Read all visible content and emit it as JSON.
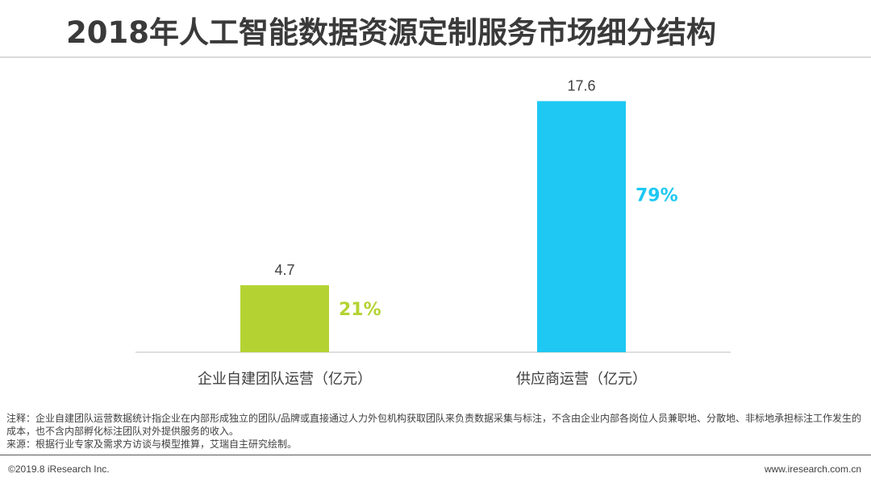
{
  "title": "2018年人工智能数据资源定制服务市场细分结构",
  "chart_data": {
    "type": "bar",
    "categories": [
      "企业自建团队运营（亿元）",
      "供应商运营（亿元）"
    ],
    "values": [
      4.7,
      17.6
    ],
    "value_labels": [
      "4.7",
      "17.6"
    ],
    "percent_labels": [
      "21%",
      "79%"
    ],
    "colors": [
      "#b4d333",
      "#1ec8f2"
    ],
    "ylim": [
      0,
      20
    ],
    "grid": false,
    "legend": "none"
  },
  "notes": {
    "note": "注释：企业自建团队运营数据统计指企业在内部形成独立的团队/品牌或直接通过人力外包机构获取团队来负责数据采集与标注，不含由企业内部各岗位人员兼职地、分散地、非标地承担标注工作发生的成本，也不含内部孵化标注团队对外提供服务的收入。",
    "source": "来源：根据行业专家及需求方访谈与模型推算，艾瑞自主研究绘制。"
  },
  "footer": {
    "copyright": "©2019.8 iResearch Inc.",
    "website": "www.iresearch.com.cn"
  }
}
